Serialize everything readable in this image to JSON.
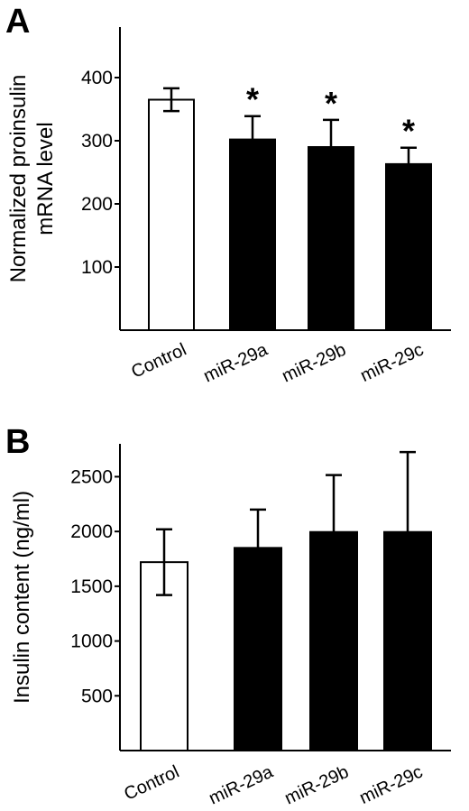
{
  "chart_data": [
    {
      "type": "bar",
      "panel": "A",
      "ylabel_lines": [
        "Normalized proinsulin",
        "mRNA level"
      ],
      "ylim": [
        0,
        480
      ],
      "yticks": [
        100,
        200,
        300,
        400
      ],
      "categories": [
        "Control",
        "miR-29a",
        "miR-29b",
        "miR-29c"
      ],
      "values": [
        365,
        302,
        290,
        263
      ],
      "errors": [
        18,
        37,
        43,
        26
      ],
      "fills": [
        "#ffffff",
        "#000000",
        "#000000",
        "#000000"
      ],
      "significance": [
        "",
        "*",
        "*",
        "*"
      ]
    },
    {
      "type": "bar",
      "panel": "B",
      "ylabel_lines": [
        "Insulin content (ng/ml)"
      ],
      "ylim": [
        0,
        2800
      ],
      "yticks": [
        500,
        1000,
        1500,
        2000,
        2500
      ],
      "categories": [
        "Control",
        "miR-29a",
        "miR-29b",
        "miR-29c"
      ],
      "values": [
        1720,
        1850,
        1995,
        1995
      ],
      "errors": [
        300,
        350,
        520,
        730
      ],
      "fills": [
        "#ffffff",
        "#000000",
        "#000000",
        "#000000"
      ],
      "significance": [
        "",
        "",
        "",
        ""
      ]
    }
  ]
}
